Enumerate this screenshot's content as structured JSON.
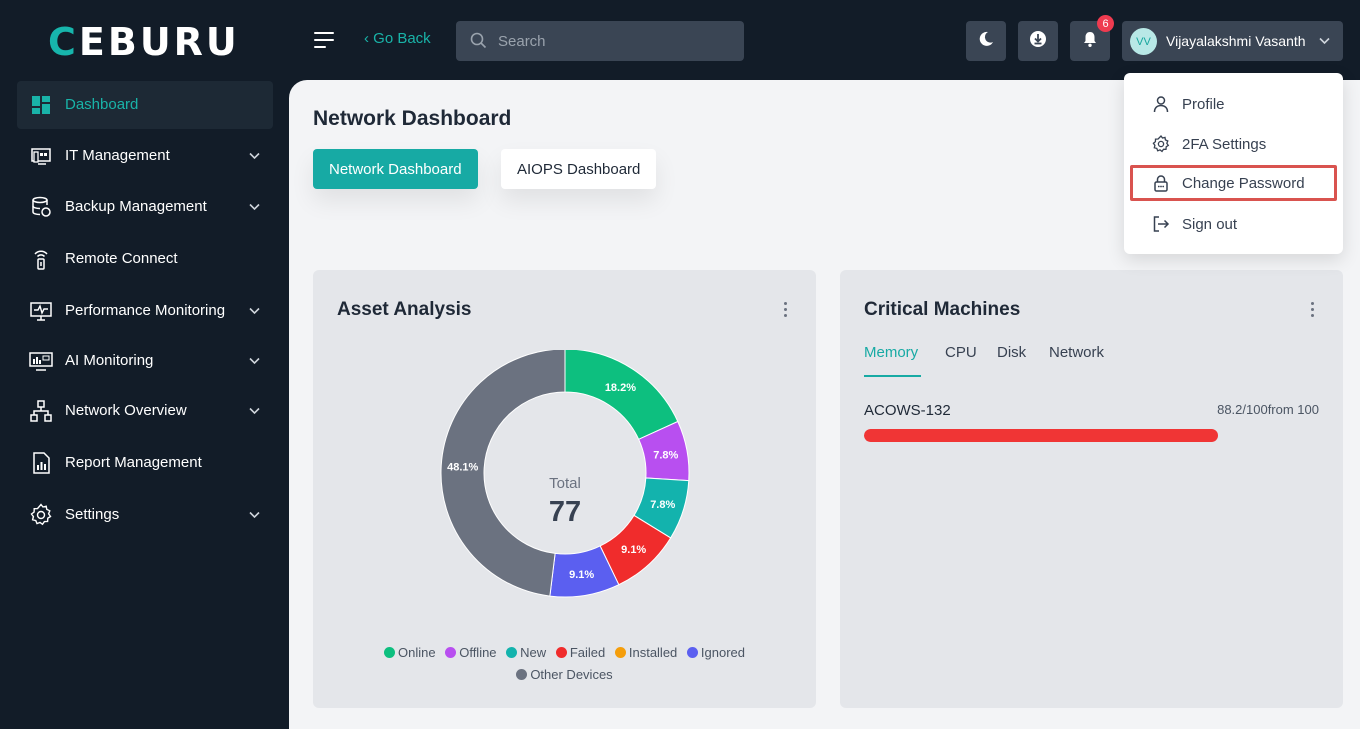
{
  "app": {
    "logo": "CEBURU"
  },
  "topbar": {
    "go_back": "‹ Go Back",
    "search_placeholder": "Search",
    "notifications_count": "6",
    "user_initials": "VV",
    "user_name": "Vijayalakshmi Vasanth",
    "icons": [
      "menu-icon",
      "moon-icon",
      "download-icon",
      "bell-icon",
      "chevron-down-icon"
    ]
  },
  "sidebar": {
    "items": [
      {
        "label": "Dashboard",
        "icon": "grid-icon",
        "active": true,
        "expandable": false
      },
      {
        "label": "IT Management",
        "icon": "devices-icon",
        "active": false,
        "expandable": true
      },
      {
        "label": "Backup Management",
        "icon": "database-backup-icon",
        "active": false,
        "expandable": true
      },
      {
        "label": "Remote Connect",
        "icon": "remote-icon",
        "active": false,
        "expandable": false
      },
      {
        "label": "Performance Monitoring",
        "icon": "monitor-icon",
        "active": false,
        "expandable": true
      },
      {
        "label": "AI Monitoring",
        "icon": "ai-monitor-icon",
        "active": false,
        "expandable": true
      },
      {
        "label": "Network Overview",
        "icon": "network-icon",
        "active": false,
        "expandable": true
      },
      {
        "label": "Report Management",
        "icon": "report-icon",
        "active": false,
        "expandable": false
      },
      {
        "label": "Settings",
        "icon": "gear-icon",
        "active": false,
        "expandable": true
      }
    ]
  },
  "main": {
    "title": "Network Dashboard",
    "tabs": [
      "Network Dashboard",
      "AIOPS Dashboard"
    ]
  },
  "asset_card": {
    "title": "Asset Analysis",
    "center_label": "Total",
    "center_value": "77",
    "legend": [
      "Online",
      "Offline",
      "New",
      "Failed",
      "Installed",
      "Ignored",
      "Other Devices"
    ]
  },
  "critical_card": {
    "title": "Critical Machines",
    "tabs": [
      "Memory",
      "CPU",
      "Disk",
      "Network"
    ],
    "active_tab": "Memory",
    "machine": {
      "name": "ACOWS-132",
      "value_text": "88.2/100from 100",
      "percent": 88.2,
      "color": "#f03535"
    }
  },
  "user_menu": {
    "items": [
      {
        "label": "Profile",
        "icon": "user-icon"
      },
      {
        "label": "2FA Settings",
        "icon": "gear-icon"
      },
      {
        "label": "Change Password",
        "icon": "lock-icon",
        "highlighted": true
      },
      {
        "label": "Sign out",
        "icon": "sign-out-icon"
      }
    ]
  },
  "chart_data": {
    "type": "pie",
    "title": "Asset Analysis",
    "categories": [
      "Online",
      "Offline",
      "New",
      "Failed",
      "Installed",
      "Ignored",
      "Other Devices"
    ],
    "values": [
      18.2,
      7.8,
      7.8,
      9.1,
      0,
      9.1,
      48.1
    ],
    "labels": [
      "18.2%",
      "7.8%",
      "7.8%",
      "9.1%",
      "",
      "9.1%",
      "48.1%"
    ],
    "colors": [
      "#0dbf7f",
      "#b84ff0",
      "#13b3ad",
      "#f02c2c",
      "#f59e0b",
      "#5b5ff0",
      "#6b7280"
    ],
    "total": 77,
    "legend_position": "bottom"
  }
}
